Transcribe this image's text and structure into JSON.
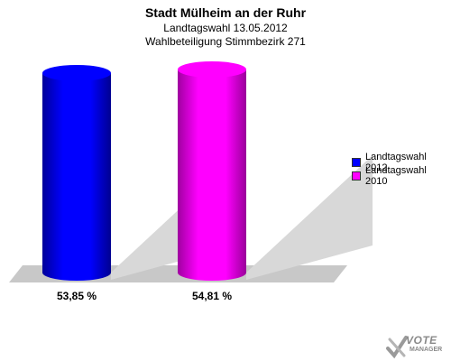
{
  "header": {
    "title": "Stadt Mülheim an der Ruhr",
    "subtitle1": "Landtagswahl 13.05.2012",
    "subtitle2": "Wahlbeteiligung Stimmbezirk 271"
  },
  "chart_data": {
    "type": "bar",
    "title": "Stadt Mülheim an der Ruhr",
    "subtitle": [
      "Landtagswahl 13.05.2012",
      "Wahlbeteiligung Stimmbezirk 271"
    ],
    "categories": [
      "Landtagswahl 2012",
      "Landtagswahl 2010"
    ],
    "values": [
      53.85,
      54.81
    ],
    "value_labels": [
      "53,85 %",
      "54,81 %"
    ],
    "colors": [
      "#0000ff",
      "#ff00ff"
    ],
    "grid": false,
    "legend_position": "right"
  },
  "legend": {
    "items": [
      {
        "label": "Landtagswahl 2012",
        "color": "#0000ff"
      },
      {
        "label": "Landtagswahl 2010",
        "color": "#ff00ff"
      }
    ]
  },
  "logo": {
    "text": "VOTE",
    "subtext": "MANAGER"
  }
}
